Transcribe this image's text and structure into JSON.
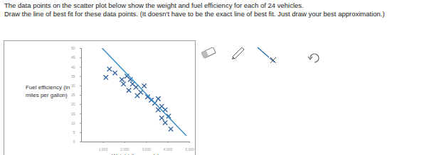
{
  "question": [
    "The data points on the scatter plot below show the weight and fuel efficiency for each of 24 vehicles.",
    "Draw the line of best fit for these data points. (It doesn't have to be the exact line of best fit. Just draw your best approximation.)"
  ],
  "chart_data": {
    "type": "scatter",
    "x_label": "Weight (in pounds)",
    "y_label": "Fuel efficiency (in miles per gallon)",
    "xlim": [
      0,
      5000
    ],
    "xticks": [
      1000,
      2000,
      3000,
      4000,
      5000
    ],
    "ylim": [
      0,
      50
    ],
    "yticks": [
      0,
      5,
      10,
      15,
      20,
      25,
      30,
      35,
      40,
      45,
      50
    ],
    "grid": false,
    "series": [
      {
        "type": "scatter",
        "marker": "x",
        "color": "#2a5d9a",
        "x": [
          1290,
          1130,
          1550,
          1870,
          2100,
          2260,
          1940,
          2360,
          2520,
          2190,
          2740,
          2900,
          3060,
          2580,
          3230,
          3390,
          3550,
          3710,
          3870,
          3550,
          4030,
          3710,
          3870,
          4130
        ],
        "values": [
          39,
          34.5,
          36.9,
          33.4,
          35.2,
          33.4,
          31,
          31,
          29.3,
          27.6,
          26.6,
          30,
          24.1,
          24.8,
          22.4,
          20.7,
          23.1,
          19,
          17.2,
          17.2,
          13.8,
          12.8,
          10.3,
          6.9
        ]
      },
      {
        "type": "line",
        "line_style": "solid",
        "color": "#3a8fc8",
        "x": [
          970,
          4840
        ],
        "values": [
          50,
          3.4
        ]
      }
    ]
  }
}
